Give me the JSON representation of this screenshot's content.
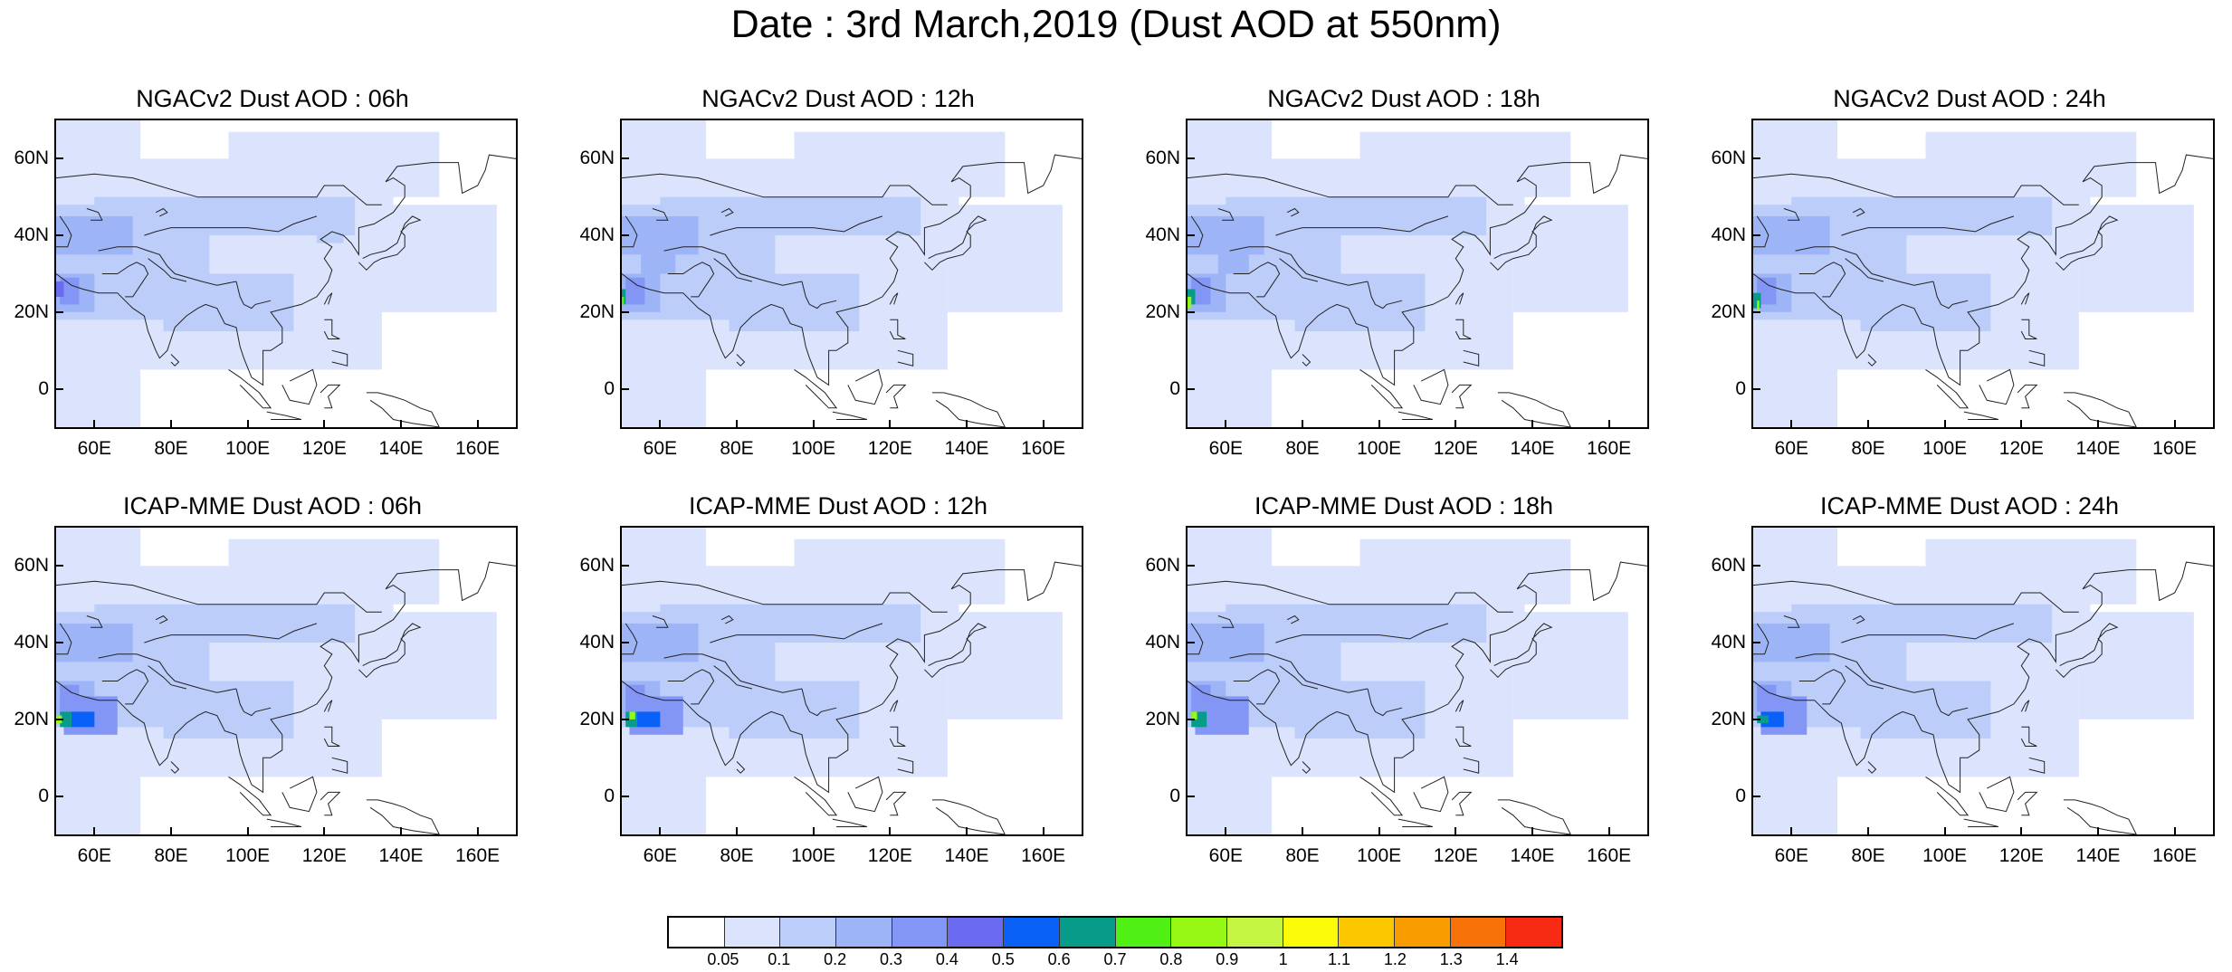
{
  "title": "Date : 3rd March,2019 (Dust AOD at 550nm)",
  "colors": {
    "levels": [
      "#ffffff",
      "#dbe4fc",
      "#bccdfa",
      "#9db5f7",
      "#8395f5",
      "#6b6bf2",
      "#0a61f7",
      "#079b8a",
      "#50f014",
      "#96f814",
      "#c4f542",
      "#fbfb0a",
      "#fbc800",
      "#f99c00",
      "#f77208",
      "#f72a13"
    ]
  },
  "axes": {
    "lat_labels": [
      "60N",
      "40N",
      "20N",
      "0"
    ],
    "lon_labels": [
      "60E",
      "80E",
      "100E",
      "120E",
      "140E",
      "160E"
    ],
    "lat_range": [
      -10,
      70
    ],
    "lon_range": [
      50,
      170
    ]
  },
  "panels": [
    {
      "id": "ngac-06",
      "title": "NGACv2 Dust AOD : 06h"
    },
    {
      "id": "ngac-12",
      "title": "NGACv2 Dust AOD : 12h"
    },
    {
      "id": "ngac-18",
      "title": "NGACv2 Dust AOD : 18h"
    },
    {
      "id": "ngac-24",
      "title": "NGACv2 Dust AOD : 24h"
    },
    {
      "id": "icap-06",
      "title": "ICAP-MME Dust AOD : 06h"
    },
    {
      "id": "icap-12",
      "title": "ICAP-MME Dust AOD : 12h"
    },
    {
      "id": "icap-18",
      "title": "ICAP-MME Dust AOD : 18h"
    },
    {
      "id": "icap-24",
      "title": "ICAP-MME Dust AOD : 24h"
    }
  ],
  "colorbar": {
    "labels": [
      "0.05",
      "0.1",
      "0.2",
      "0.3",
      "0.4",
      "0.5",
      "0.6",
      "0.7",
      "0.8",
      "0.9",
      "1",
      "1.1",
      "1.2",
      "1.3",
      "1.4"
    ]
  }
}
